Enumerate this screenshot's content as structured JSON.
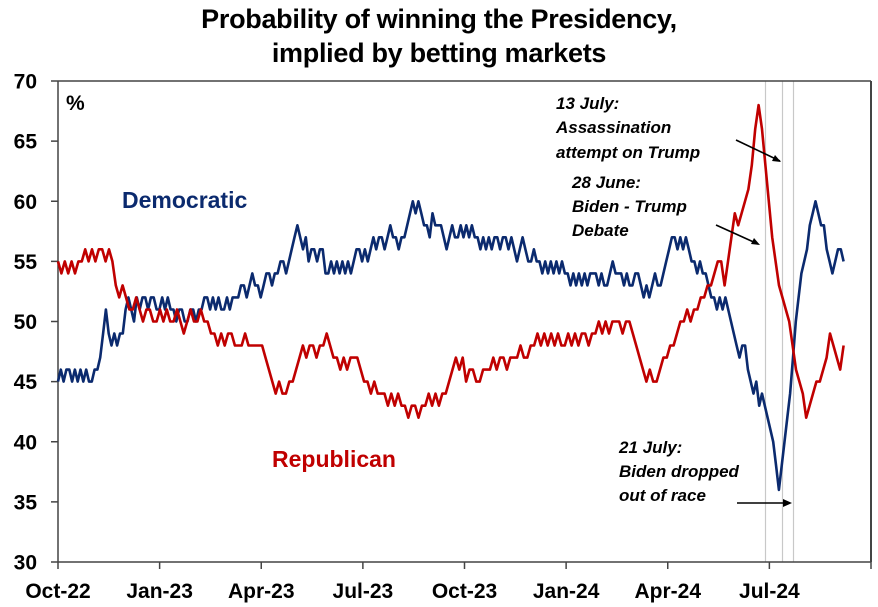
{
  "chart_data": {
    "type": "line",
    "title": "Probability of winning the Presidency, implied by betting markets",
    "title_lines": [
      "Probability of winning the Presidency,",
      "implied by betting markets"
    ],
    "ylabel": "%",
    "xlabel": "",
    "ylim": [
      30,
      70
    ],
    "yticks": [
      30,
      35,
      40,
      45,
      50,
      55,
      60,
      65,
      70
    ],
    "xlim_weeks": [
      0,
      104
    ],
    "xticks": [
      {
        "label": "Oct-22",
        "week": 0
      },
      {
        "label": "Jan-23",
        "week": 13
      },
      {
        "label": "Apr-23",
        "week": 26
      },
      {
        "label": "Jul-23",
        "week": 39
      },
      {
        "label": "Oct-23",
        "week": 52
      },
      {
        "label": "Jan-24",
        "week": 65
      },
      {
        "label": "Apr-24",
        "week": 78
      },
      {
        "label": "Jul-24",
        "week": 91
      },
      {
        "label": "",
        "week": 104
      }
    ],
    "grid": false,
    "x_unit": "weeks since Oct-22 (approx. 2 samples per week)",
    "series": [
      {
        "name": "Democratic",
        "color": "#0b2a6e",
        "label_pos": [
          8,
          60
        ],
        "values": [
          45,
          46,
          45,
          46,
          46,
          45,
          46,
          45,
          46,
          45,
          46,
          45,
          45,
          46,
          46,
          47,
          49,
          51,
          49,
          48,
          49,
          48,
          49,
          49,
          51,
          52,
          51,
          50,
          52,
          51,
          52,
          52,
          51,
          52,
          52,
          51,
          51,
          52,
          51,
          52,
          51,
          51,
          50,
          51,
          51,
          50,
          50,
          51,
          51,
          50,
          51,
          51,
          52,
          52,
          51,
          52,
          51,
          52,
          51,
          51,
          52,
          51,
          52,
          52,
          52,
          53,
          53,
          52,
          53,
          54,
          53,
          53,
          52,
          53,
          54,
          54,
          53,
          54,
          54,
          55,
          55,
          54,
          55,
          56,
          57,
          58,
          57,
          56,
          57,
          55,
          56,
          56,
          55,
          56,
          56,
          54,
          54,
          55,
          54,
          55,
          54,
          55,
          54,
          55,
          54,
          55,
          56,
          56,
          55,
          56,
          55,
          56,
          57,
          56,
          57,
          57,
          56,
          57,
          58,
          57,
          57,
          56,
          57,
          57,
          58,
          59,
          60,
          59,
          60,
          59,
          58,
          58,
          57,
          59,
          58,
          58,
          58,
          57,
          56,
          57,
          58,
          57,
          57,
          58,
          57,
          58,
          57,
          58,
          57,
          57,
          56,
          57,
          56,
          57,
          56,
          57,
          57,
          56,
          57,
          57,
          56,
          57,
          56,
          55,
          56,
          57,
          56,
          55,
          55,
          56,
          55,
          55,
          54,
          55,
          54,
          55,
          54,
          55,
          54,
          55,
          54,
          54,
          53,
          54,
          53,
          54,
          53,
          54,
          53,
          54,
          54,
          54,
          53,
          54,
          53,
          53,
          54,
          55,
          54,
          54,
          54,
          53,
          54,
          53,
          53,
          54,
          54,
          53,
          52,
          53,
          52,
          53,
          54,
          53,
          53,
          54,
          55,
          56,
          57,
          57,
          56,
          57,
          56,
          57,
          56,
          55,
          55,
          54,
          55,
          54,
          54,
          53,
          52,
          52,
          51,
          52,
          51,
          52,
          51,
          50,
          49,
          48,
          47,
          48,
          48,
          46,
          45,
          44,
          45,
          43,
          44,
          43,
          42,
          41,
          40,
          38,
          36,
          38,
          40,
          42,
          44,
          47,
          50,
          52,
          54,
          55,
          56,
          58,
          59,
          60,
          59,
          58,
          58,
          56,
          55,
          54,
          55,
          56,
          56,
          55
        ],
        "note": "values approximated by reading the chart; Democratic series peaks ~60 (Jul-23, Aug-24), trough ~36 (Jul-24)"
      },
      {
        "name": "Republican",
        "color": "#c00000",
        "label_pos": [
          28,
          40
        ],
        "values": [
          55,
          54,
          55,
          54,
          55,
          54,
          55,
          55,
          56,
          55,
          56,
          55,
          56,
          56,
          55,
          56,
          55,
          53,
          52,
          53,
          52,
          51,
          51,
          52,
          51,
          50,
          51,
          51,
          50,
          50,
          51,
          50,
          51,
          50,
          50,
          51,
          50,
          49,
          50,
          51,
          50,
          50,
          51,
          50,
          50,
          49,
          49,
          48,
          49,
          48,
          49,
          49,
          48,
          48,
          48,
          49,
          48,
          48,
          48,
          48,
          48,
          47,
          46,
          45,
          44,
          45,
          44,
          44,
          45,
          45,
          46,
          47,
          48,
          47,
          48,
          48,
          47,
          48,
          48,
          49,
          48,
          47,
          47,
          46,
          47,
          46,
          47,
          47,
          47,
          46,
          45,
          45,
          44,
          45,
          44,
          44,
          44,
          43,
          44,
          43,
          44,
          43,
          43,
          42,
          43,
          43,
          42,
          43,
          43,
          44,
          43,
          44,
          43,
          44,
          44,
          45,
          46,
          47,
          46,
          47,
          45,
          46,
          46,
          45,
          45,
          46,
          46,
          46,
          47,
          46,
          47,
          47,
          46,
          47,
          47,
          47,
          48,
          47,
          47,
          48,
          48,
          49,
          48,
          49,
          48,
          49,
          48,
          49,
          48,
          48,
          49,
          48,
          49,
          48,
          49,
          49,
          48,
          49,
          49,
          50,
          49,
          50,
          49,
          50,
          50,
          50,
          49,
          50,
          50,
          49,
          48,
          47,
          46,
          45,
          46,
          45,
          45,
          46,
          47,
          47,
          48,
          48,
          49,
          50,
          50,
          51,
          50,
          51,
          51,
          52,
          52,
          53,
          53,
          54,
          55,
          55,
          53,
          55,
          57,
          59,
          58,
          59,
          60,
          61,
          63,
          66,
          68,
          66,
          63,
          60,
          57,
          55,
          53,
          52,
          51,
          50,
          48,
          46,
          45,
          44,
          42,
          43,
          44,
          45,
          45,
          46,
          47,
          49,
          48,
          47,
          46,
          48
        ],
        "note": "values approximated by reading the chart; Republican series peaks ~68 (13 July 2024), trough ~42"
      }
    ],
    "series_labels": [
      {
        "text": "Democratic",
        "color": "#0b2a6e"
      },
      {
        "text": "Republican",
        "color": "#c00000"
      }
    ],
    "annotations": [
      {
        "lines": [
          "13 July:",
          "Assassination",
          "attempt on Trump"
        ],
        "target": "Republican peak, 13 Jul 2024"
      },
      {
        "lines": [
          "28 June:",
          "Biden - Trump",
          "Debate"
        ],
        "target": "28 Jun 2024"
      },
      {
        "lines": [
          "21 July:",
          "Biden dropped",
          "out of race"
        ],
        "target": "21 Jul 2024"
      }
    ],
    "event_lines": [
      "28 June",
      "13 July",
      "21 July"
    ]
  }
}
